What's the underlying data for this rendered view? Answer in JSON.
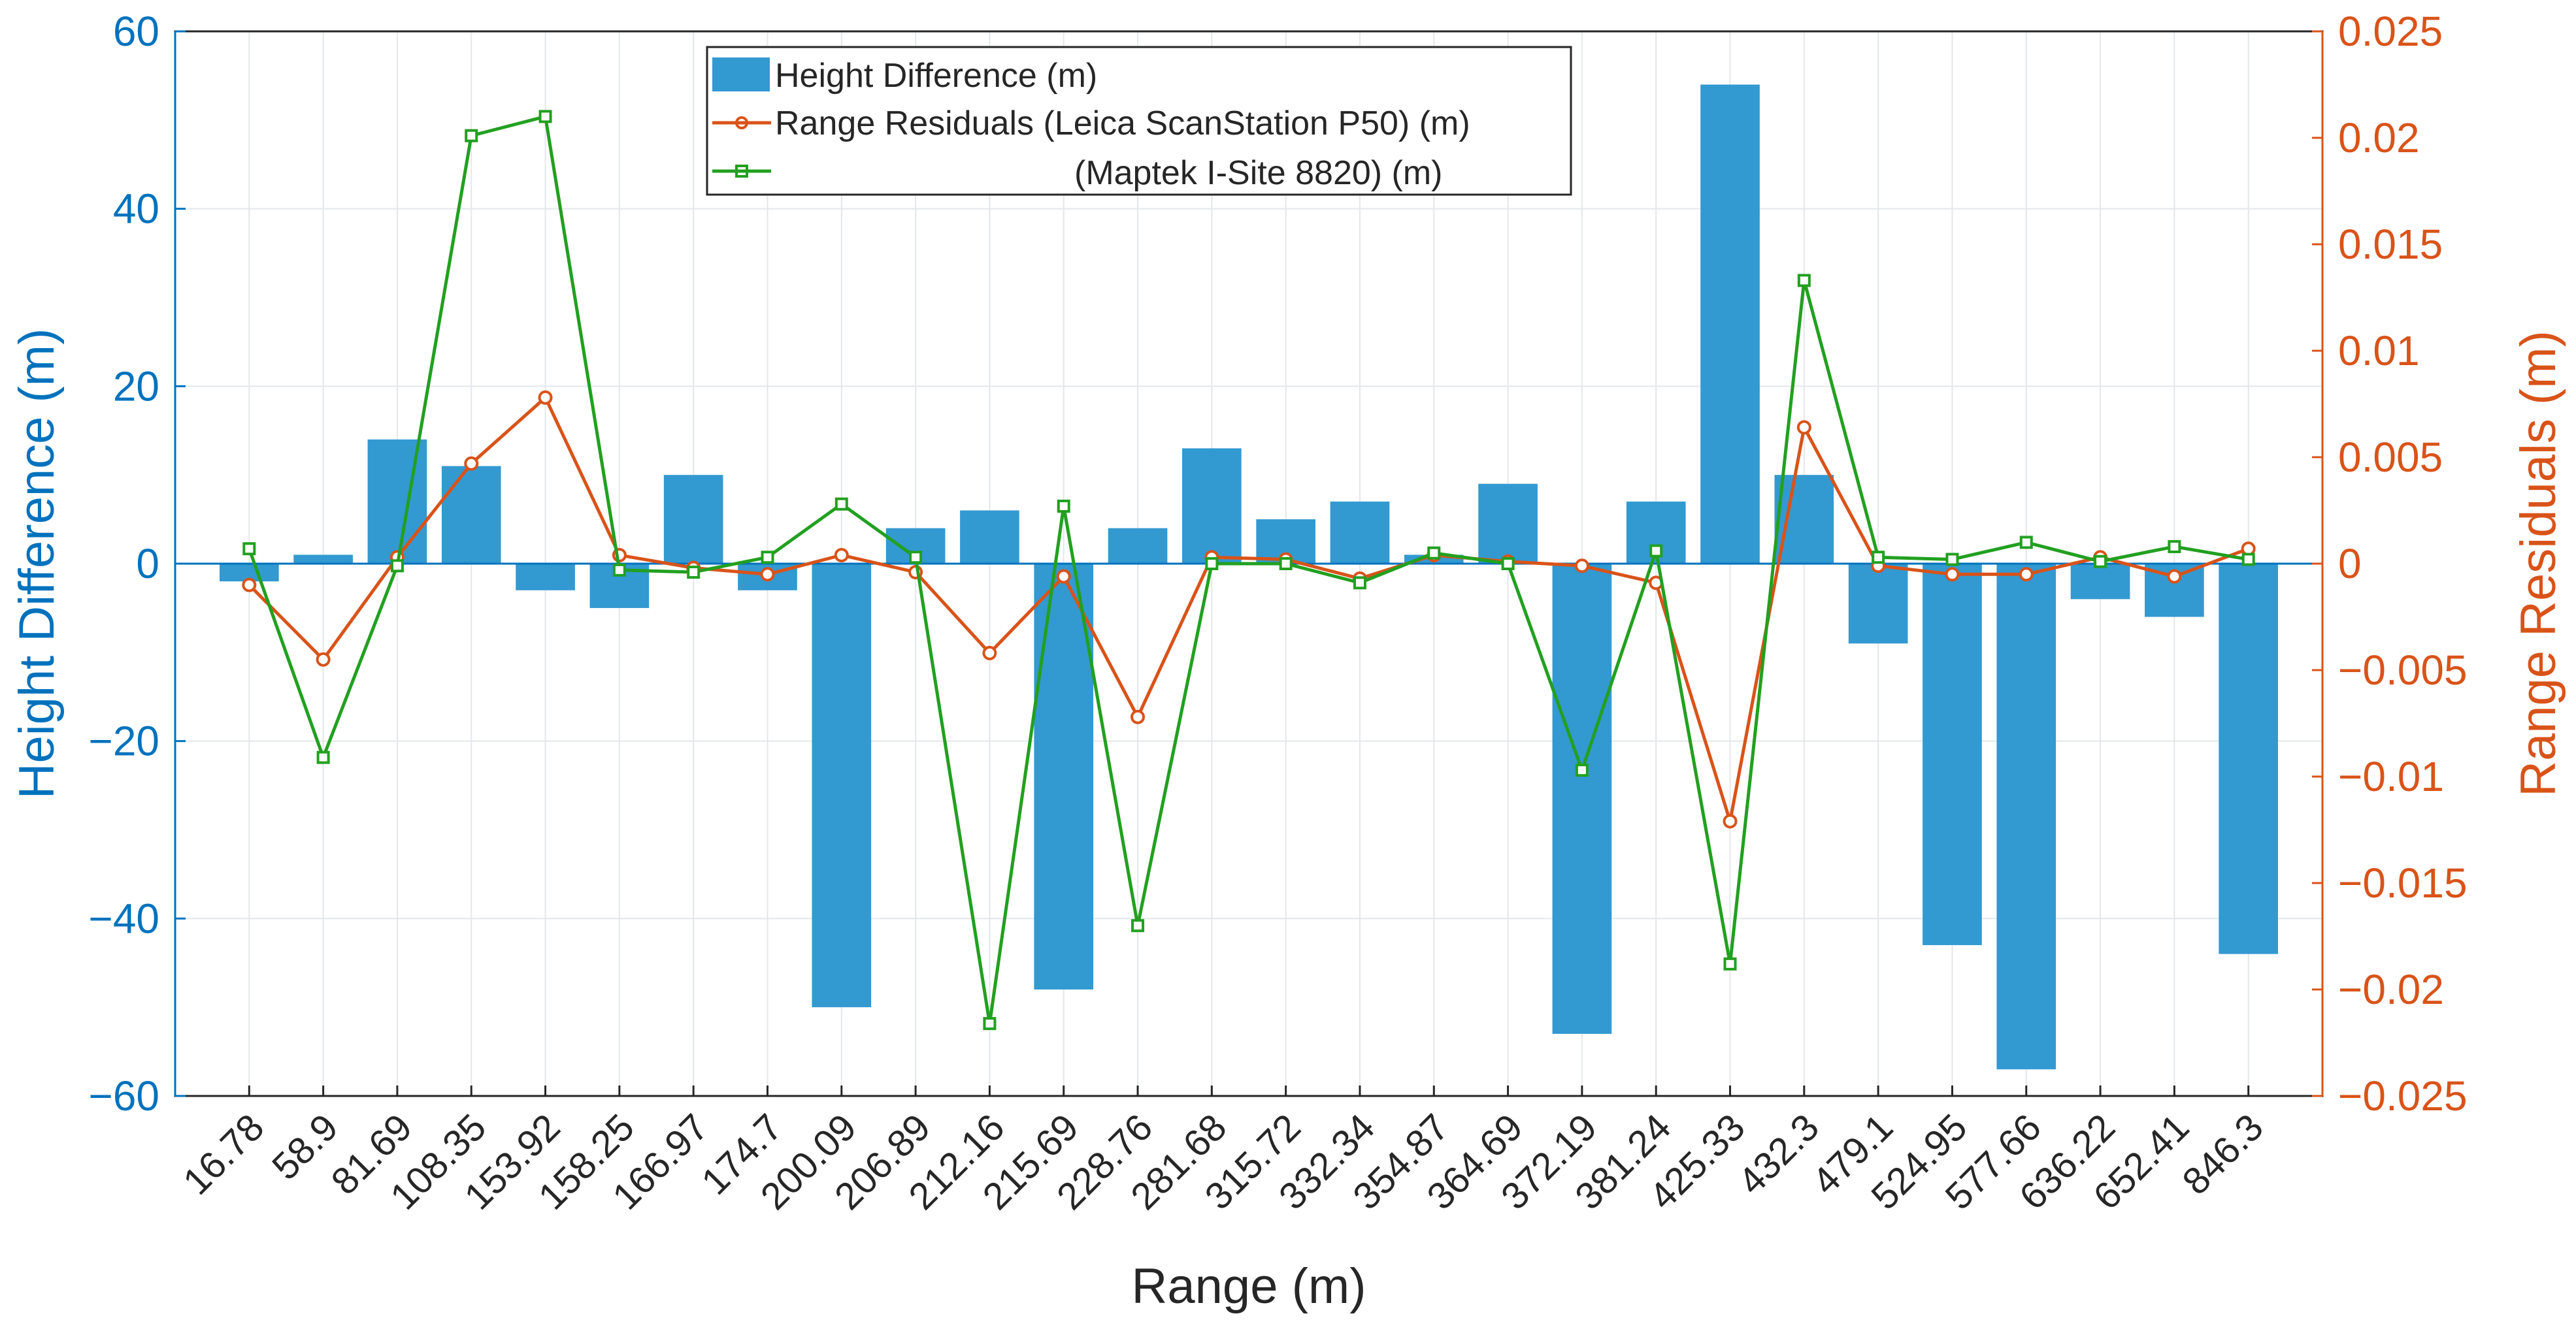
{
  "chart_data": {
    "type": "bar+line",
    "xlabel": "Range (m)",
    "ylabel_left": "Height Difference (m)",
    "ylabel_right": "Range Residuals (m)",
    "ylim_left": [
      -60,
      60
    ],
    "ylim_right": [
      -0.025,
      0.025
    ],
    "yticks_left": [
      60,
      40,
      20,
      0,
      -20,
      -40,
      -60
    ],
    "yticks_left_labels": [
      "60",
      "40",
      "20",
      "0",
      "−20",
      "−40",
      "−60"
    ],
    "yticks_right": [
      0.025,
      0.02,
      0.015,
      0.01,
      0.005,
      0,
      -0.005,
      -0.01,
      -0.015,
      -0.02,
      -0.025
    ],
    "yticks_right_labels": [
      "0.025",
      "0.02",
      "0.015",
      "0.01",
      "0.005",
      "0",
      "−0.005",
      "−0.01",
      "−0.015",
      "−0.02",
      "−0.025"
    ],
    "grid": true,
    "legend_position": "top-center",
    "categories": [
      "16.78",
      "58.9",
      "81.69",
      "108.35",
      "153.92",
      "158.25",
      "166.97",
      "174.7",
      "200.09",
      "206.89",
      "212.16",
      "215.69",
      "228.76",
      "281.68",
      "315.72",
      "332.34",
      "354.87",
      "364.69",
      "372.19",
      "381.24",
      "425.33",
      "432.3",
      "479.1",
      "524.95",
      "577.66",
      "636.22",
      "652.41",
      "846.3"
    ],
    "series": [
      {
        "name": "Height Difference (m)",
        "type": "bar",
        "axis": "left",
        "color": "#3399D1",
        "values": [
          -2,
          1,
          14,
          11,
          -3,
          -5,
          10,
          -3,
          -50,
          4,
          6,
          -48,
          4,
          13,
          5,
          7,
          1,
          9,
          -53,
          7,
          54,
          10,
          -9,
          -43,
          -57,
          -4,
          -6,
          -44
        ]
      },
      {
        "name": "Range Residuals (Leica ScanStation P50) (m)",
        "type": "line",
        "axis": "right",
        "marker": "circle",
        "color": "#D95319",
        "values": [
          -0.001,
          -0.0045,
          0.0003,
          0.0047,
          0.0078,
          0.0004,
          -0.0002,
          -0.0005,
          0.0004,
          -0.0004,
          -0.0042,
          -0.0006,
          -0.0072,
          0.0003,
          0.0002,
          -0.0007,
          0.0004,
          0.0001,
          -0.0001,
          -0.0009,
          -0.0121,
          0.0064,
          -0.0001,
          -0.0005,
          -0.0005,
          0.0003,
          -0.0006,
          0.0007
        ]
      },
      {
        "name": "(Maptek I-Site 8820) (m)",
        "type": "line",
        "axis": "right",
        "marker": "square",
        "color": "#22A020",
        "values": [
          0.0007,
          -0.0091,
          -0.0001,
          0.0201,
          0.021,
          -0.0003,
          -0.0004,
          0.0003,
          0.0028,
          0.0003,
          -0.0216,
          0.0027,
          -0.017,
          0.0,
          0.0,
          -0.0009,
          0.0005,
          0.0,
          -0.0097,
          0.0006,
          -0.0188,
          0.0133,
          0.0003,
          0.0002,
          0.001,
          0.0001,
          0.0008,
          0.0002
        ]
      }
    ]
  }
}
